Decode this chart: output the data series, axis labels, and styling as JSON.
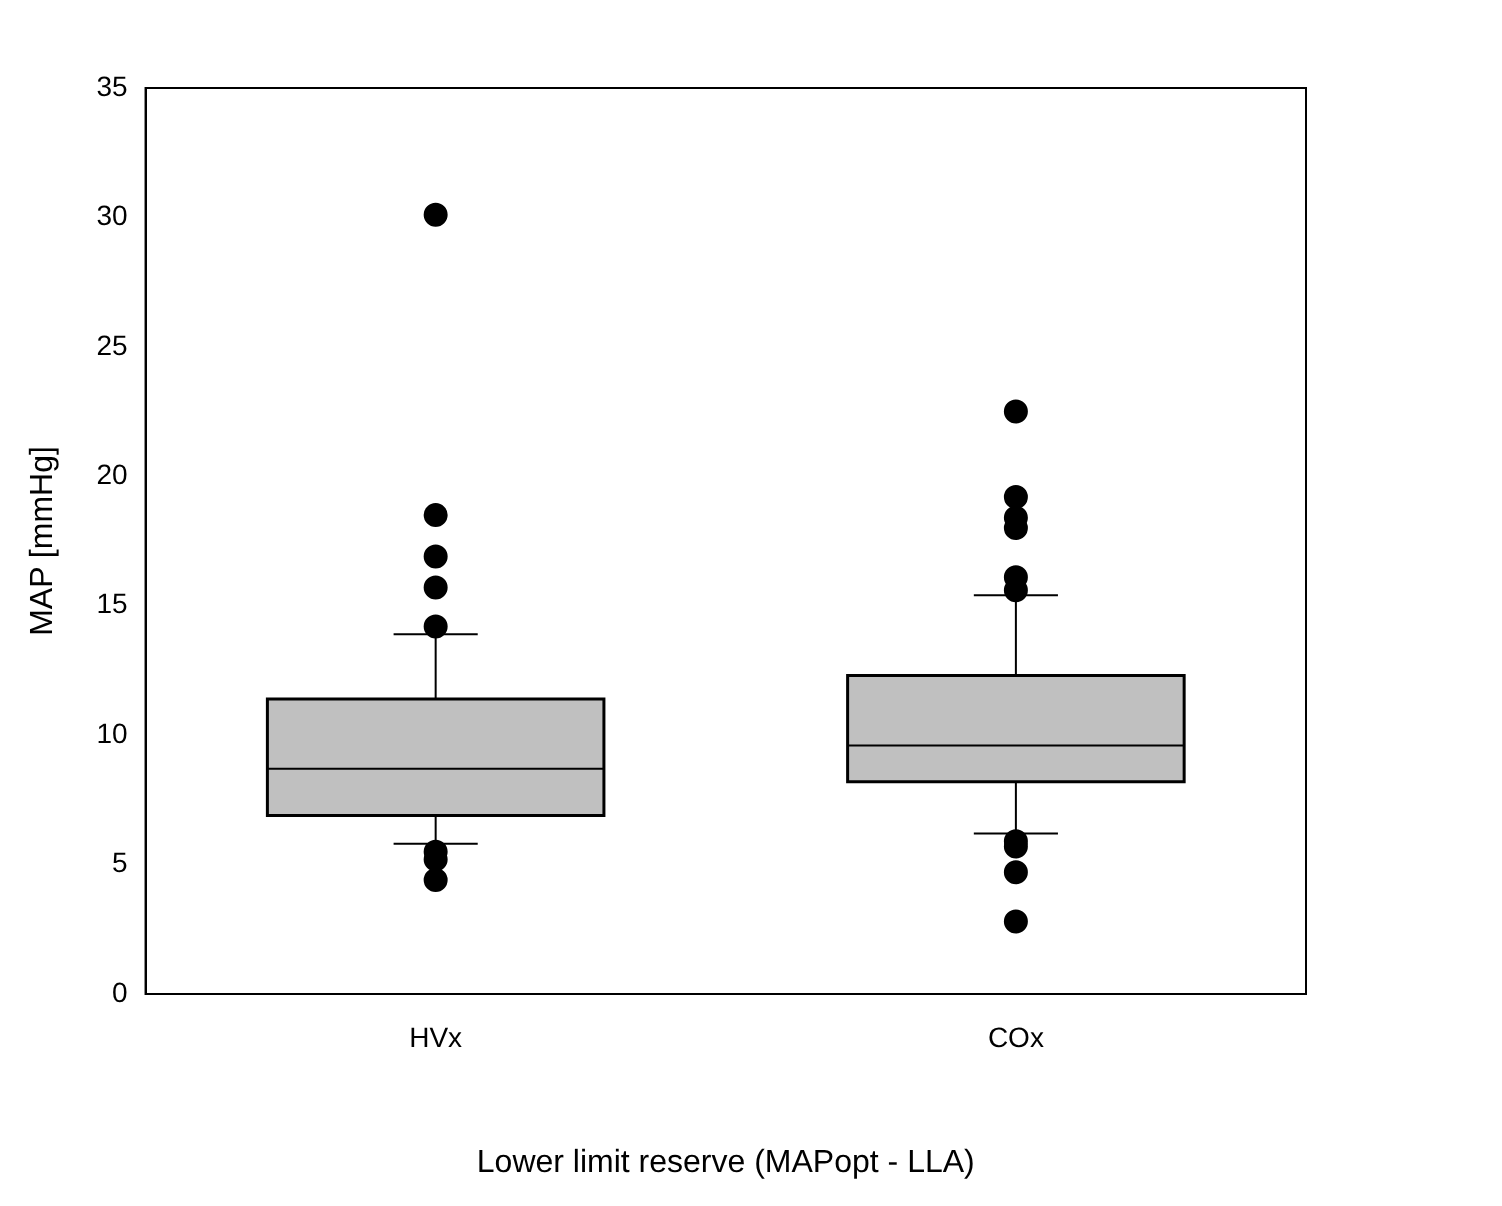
{
  "chart_data": {
    "type": "box",
    "xlabel": "Lower limit reserve (MAPopt - LLA)",
    "ylabel": "MAP [mmHg]",
    "categories": [
      "HVx",
      "COx"
    ],
    "color": "#c0c0c0",
    "marker": "circle",
    "ylim": [
      0,
      35
    ],
    "yticks": [
      0,
      5,
      10,
      15,
      20,
      25,
      30,
      35
    ],
    "grid": false,
    "legend": false,
    "boxes": [
      {
        "low": 5.8,
        "q1": 6.9,
        "median": 8.7,
        "q3": 11.4,
        "high": 13.9,
        "outliers": [
          4.4,
          5.2,
          5.5,
          14.2,
          15.7,
          16.9,
          18.5,
          30.1
        ]
      },
      {
        "low": 6.2,
        "q1": 8.2,
        "median": 9.6,
        "q3": 12.3,
        "high": 15.4,
        "outliers": [
          2.8,
          4.7,
          5.7,
          5.9,
          15.6,
          16.1,
          18.0,
          18.4,
          19.2,
          22.5
        ]
      }
    ]
  }
}
